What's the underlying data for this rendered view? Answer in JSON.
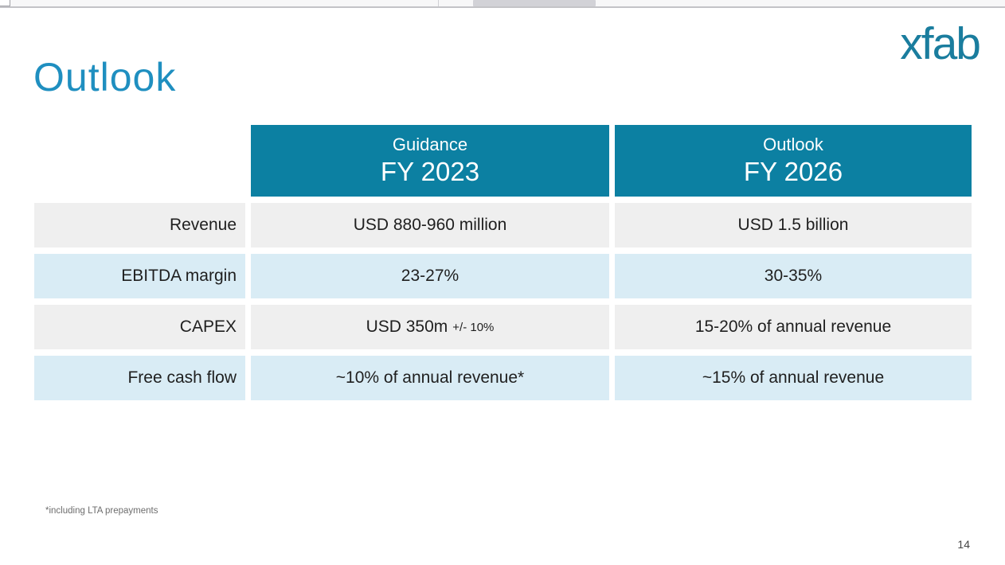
{
  "slide": {
    "title": "Outlook",
    "logo_text": "xfab",
    "footnote": "*including LTA prepayments",
    "page_number": "14"
  },
  "table": {
    "header": [
      {
        "line1": "Guidance",
        "line2": "FY 2023"
      },
      {
        "line1": "Outlook",
        "line2": "FY 2026"
      }
    ],
    "rows": [
      {
        "label": "Revenue",
        "guidance_fy2023": "USD 880-960 million",
        "outlook_fy2026": "USD 1.5 billion"
      },
      {
        "label": "EBITDA margin",
        "guidance_fy2023": "23-27%",
        "outlook_fy2026": "30-35%"
      },
      {
        "label": "CAPEX",
        "guidance_fy2023": "USD 350m",
        "guidance_fy2023_note": "+/- 10%",
        "outlook_fy2026": "15-20% of annual revenue"
      },
      {
        "label": "Free cash flow",
        "guidance_fy2023": "~10% of annual revenue*",
        "outlook_fy2026": "~15% of annual revenue"
      }
    ]
  },
  "colors": {
    "header_teal": "#0c80a2",
    "title_blue": "#1f8fc0",
    "logo_teal": "#1a7d9e",
    "row_gray": "#efefef",
    "row_blue": "#d9ecf5"
  }
}
